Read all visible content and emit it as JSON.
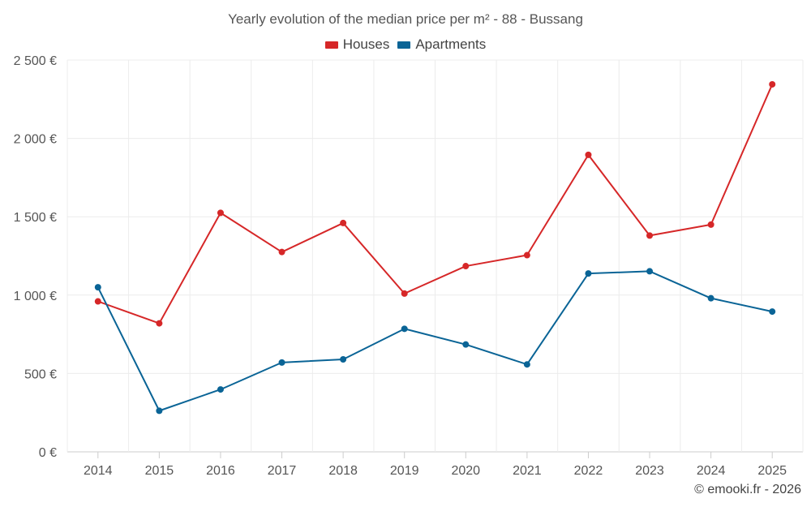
{
  "chart_data": {
    "type": "line",
    "title": "Yearly evolution of the median price per m² - 88 - Bussang",
    "xlabel": "",
    "ylabel": "",
    "categories": [
      "2014",
      "2015",
      "2016",
      "2017",
      "2018",
      "2019",
      "2020",
      "2021",
      "2022",
      "2023",
      "2024",
      "2025"
    ],
    "ylim": [
      0,
      2500
    ],
    "yticks": [
      0,
      500,
      1000,
      1500,
      2000,
      2500
    ],
    "ytick_labels": [
      "0 €",
      "500 €",
      "1 000 €",
      "1 500 €",
      "2 000 €",
      "2 500 €"
    ],
    "grid": true,
    "legend_position": "top-center",
    "series": [
      {
        "name": "Houses",
        "color": "#d62728",
        "values": [
          960,
          820,
          1525,
          1275,
          1460,
          1010,
          1185,
          1255,
          1895,
          1380,
          1450,
          2345
        ]
      },
      {
        "name": "Apartments",
        "color": "#0a6496",
        "values": [
          1050,
          262,
          398,
          570,
          590,
          785,
          685,
          558,
          1138,
          1152,
          980,
          895
        ]
      }
    ]
  },
  "watermark": "© emooki.fr - 2026"
}
